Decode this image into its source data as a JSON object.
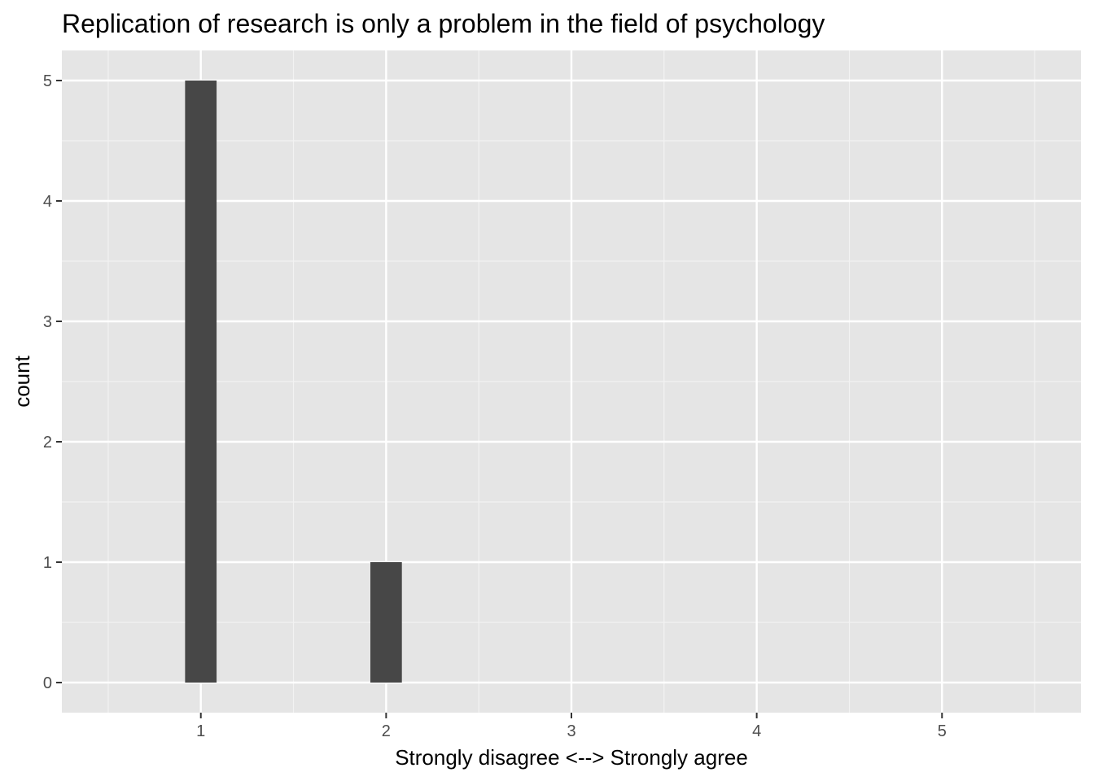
{
  "chart_data": {
    "type": "bar",
    "title": "Replication of research is only a problem in the field of psychology",
    "xlabel": "Strongly disagree <--> Strongly agree",
    "ylabel": "count",
    "x": [
      1,
      2
    ],
    "values": [
      5,
      1
    ],
    "bar_width": 0.17,
    "xlim": [
      0.25,
      5.75
    ],
    "ylim": [
      -0.25,
      5.25
    ],
    "x_ticks": [
      "1",
      "2",
      "3",
      "4",
      "5"
    ],
    "y_ticks": [
      "0",
      "1",
      "2",
      "3",
      "4",
      "5"
    ],
    "grid": true,
    "legend": "none",
    "colors": {
      "panel_background": "#e5e5e5",
      "grid_major": "#ffffff",
      "grid_minor": "#f2f2f2",
      "bar_fill": "#474747",
      "tick_label": "#4d4d4d",
      "tick_mark": "#333333"
    }
  }
}
